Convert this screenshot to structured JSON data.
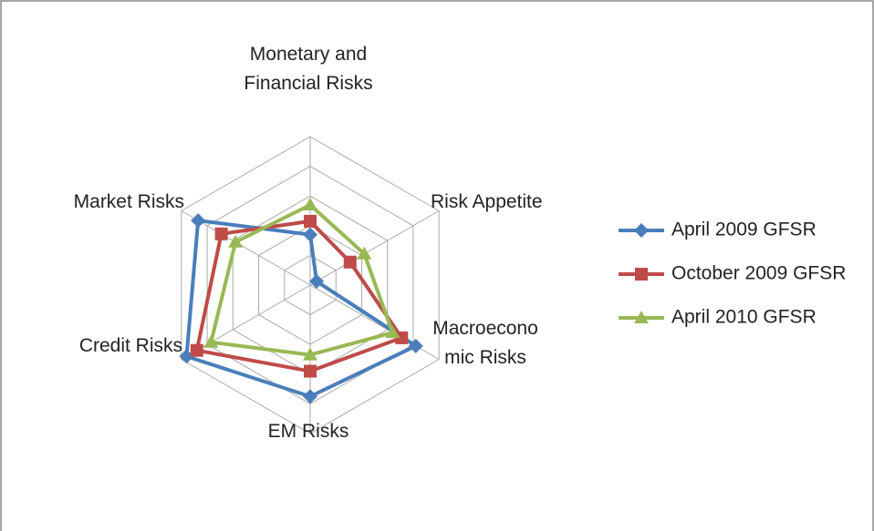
{
  "chart_data": {
    "type": "radar",
    "categories": [
      "Monetary and Financial Risks",
      "Risk Appetite",
      "Macroeconomic Risks",
      "EM Risks",
      "Credit Risks",
      "Market Risks"
    ],
    "rlim": [
      0,
      10
    ],
    "rticks": [
      2,
      4,
      6,
      8,
      10
    ],
    "grid": true,
    "legend": "right",
    "series": [
      {
        "name": "April 2009 GFSR",
        "color": "#4a7ebb",
        "marker": "diamond",
        "values": [
          3.4,
          0.5,
          8.2,
          7.5,
          9.6,
          8.7
        ]
      },
      {
        "name": "October 2009 GFSR",
        "color": "#be4b48",
        "marker": "square",
        "values": [
          4.3,
          3.1,
          7.1,
          5.8,
          8.8,
          6.9
        ]
      },
      {
        "name": "April 2010 GFSR",
        "color": "#98b954",
        "marker": "triangle",
        "values": [
          5.4,
          4.2,
          6.4,
          4.7,
          7.7,
          5.8
        ]
      }
    ]
  }
}
